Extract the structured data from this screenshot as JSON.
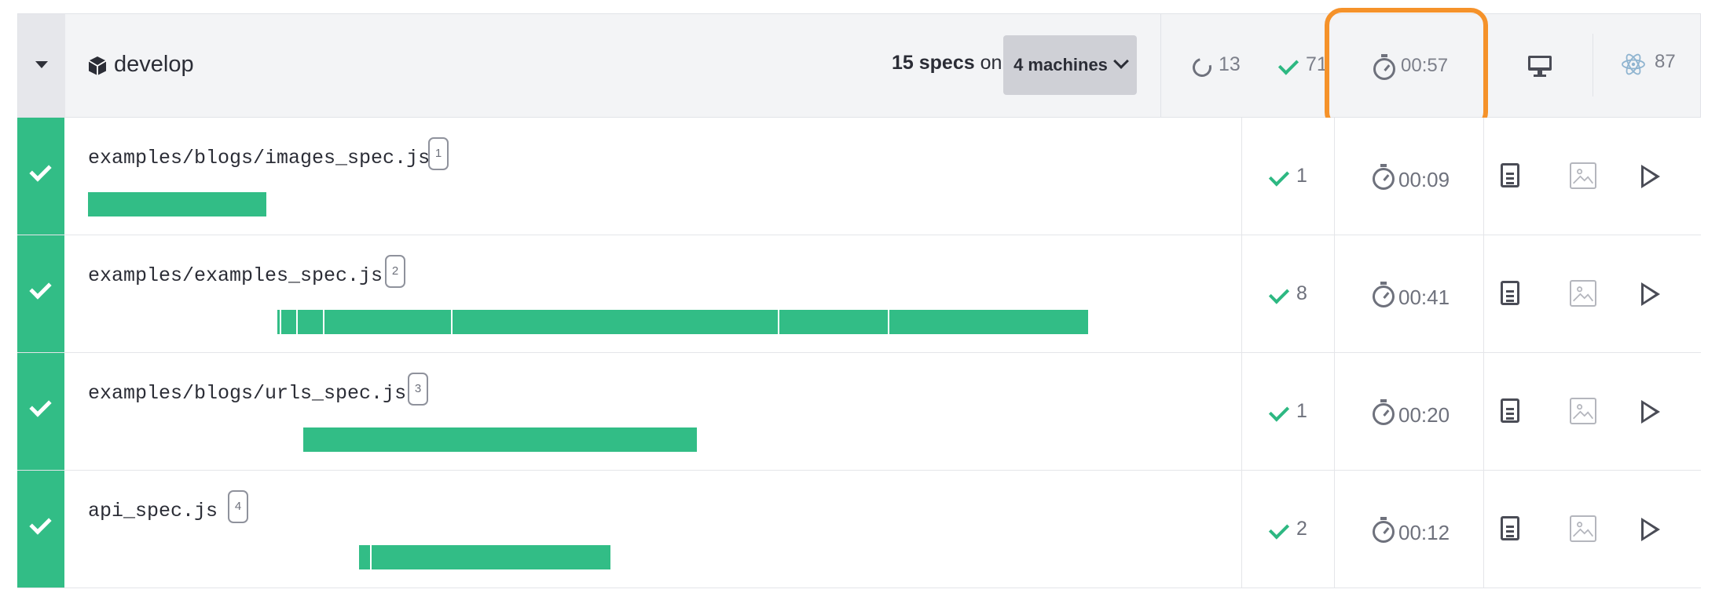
{
  "header": {
    "branch": "develop",
    "specs_count": "15 specs",
    "specs_on": "on",
    "machines_label": "4 machines",
    "pending_count": "13",
    "passed_count": "71",
    "duration": "00:57",
    "electron_count": "87"
  },
  "colors": {
    "pass": "#32bd86",
    "highlight": "#f5922a",
    "header_bg": "#f3f4f6"
  },
  "rows": [
    {
      "spec": "examples/blogs/images_spec.js",
      "machine": "1",
      "passed": "1",
      "duration": "00:09",
      "status": "passed"
    },
    {
      "spec": "examples/examples_spec.js",
      "machine": "2",
      "passed": "8",
      "duration": "00:41",
      "status": "passed"
    },
    {
      "spec": "examples/blogs/urls_spec.js",
      "machine": "3",
      "passed": "1",
      "duration": "00:20",
      "status": "passed"
    },
    {
      "spec": "api_spec.js",
      "machine": "4",
      "passed": "2",
      "duration": "00:12",
      "status": "passed"
    }
  ]
}
